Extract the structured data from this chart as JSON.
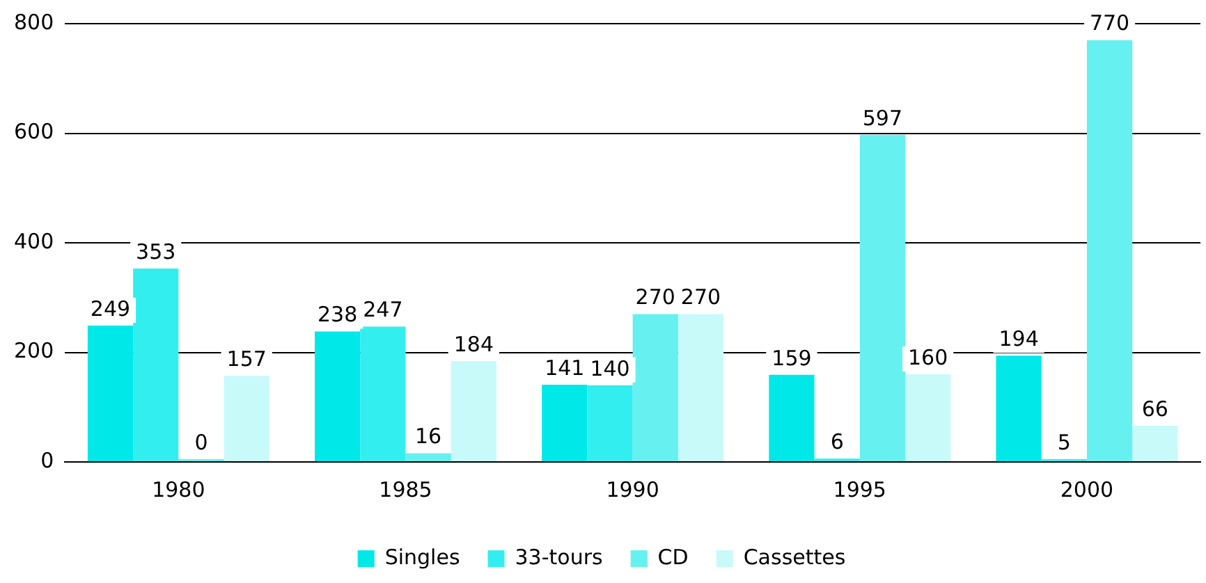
{
  "chart_data": {
    "type": "bar",
    "categories": [
      "1980",
      "1985",
      "1990",
      "1995",
      "2000"
    ],
    "series": [
      {
        "name": "Singles",
        "color": "#00e8e8",
        "values": [
          249,
          238,
          141,
          159,
          194
        ]
      },
      {
        "name": "33-tours",
        "color": "#33eeee",
        "values": [
          353,
          247,
          140,
          6,
          5
        ]
      },
      {
        "name": "CD",
        "color": "#66f0f0",
        "values": [
          0,
          16,
          270,
          597,
          770
        ]
      },
      {
        "name": "Cassettes",
        "color": "#c8fafa",
        "values": [
          157,
          184,
          270,
          160,
          66
        ]
      }
    ],
    "ylim": [
      0,
      800
    ],
    "yticks": [
      0,
      200,
      400,
      600,
      800
    ],
    "grid": "y",
    "legend": "bottom",
    "data_labels": true
  }
}
